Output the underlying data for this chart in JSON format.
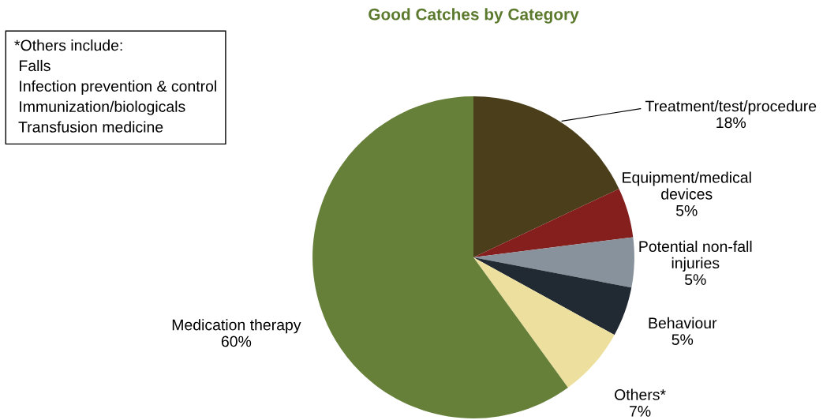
{
  "chart_data": {
    "type": "pie",
    "title": "Good Catches by Category",
    "categories": [
      "Treatment/test/procedure",
      "Equipment/medical\ndevices",
      "Potential non-fall\ninjuries",
      "Behaviour",
      "Others*",
      "Medication therapy"
    ],
    "values": [
      18,
      5,
      5,
      5,
      7,
      60
    ],
    "value_labels": [
      "18%",
      "5%",
      "5%",
      "5%",
      "7%",
      "60%"
    ],
    "colors": [
      "#4a3f1a",
      "#841f1e",
      "#87929c",
      "#212a33",
      "#ede09f",
      "#66803a"
    ],
    "annotations": [
      "*Others include:\n Falls\n Infection prevention & control\n Immunization/biologicals\n Transfusion medicine"
    ],
    "legend": false
  }
}
